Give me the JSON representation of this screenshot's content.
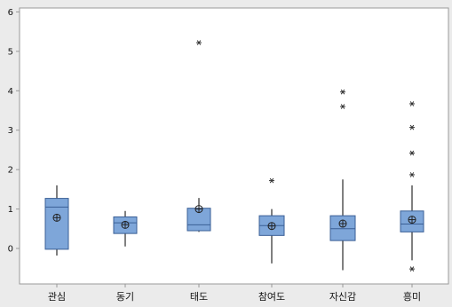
{
  "chart_data": {
    "type": "boxplot",
    "title": "",
    "xlabel": "",
    "ylabel": "",
    "ylim": [
      -0.9,
      6.1
    ],
    "yticks": [
      0,
      1,
      2,
      3,
      4,
      5,
      6
    ],
    "grid": false,
    "legend": "none",
    "colors": {
      "box_fill": "#7ea6d9",
      "box_stroke": "#3a5f96",
      "whisker": "#000000",
      "outlier": "#333333",
      "frame": "#999999",
      "plot_background": "#ffffff",
      "outer_background": "#ebebeb"
    },
    "categories": [
      "관심",
      "동기",
      "태도",
      "참여도",
      "자신감",
      "흥미"
    ],
    "boxes": [
      {
        "category": "관심",
        "whisker_low": -0.18,
        "q1": -0.02,
        "median": 1.05,
        "q3": 1.27,
        "whisker_high": 1.6,
        "mean": 0.78,
        "outliers": []
      },
      {
        "category": "동기",
        "whisker_low": 0.05,
        "q1": 0.38,
        "median": 0.65,
        "q3": 0.8,
        "whisker_high": 0.95,
        "mean": 0.6,
        "outliers": []
      },
      {
        "category": "태도",
        "whisker_low": 0.42,
        "q1": 0.45,
        "median": 0.6,
        "q3": 1.02,
        "whisker_high": 1.28,
        "mean": 1.0,
        "outliers": [
          5.22
        ]
      },
      {
        "category": "참여도",
        "whisker_low": -0.38,
        "q1": 0.33,
        "median": 0.58,
        "q3": 0.83,
        "whisker_high": 1.0,
        "mean": 0.57,
        "outliers": [
          1.72
        ]
      },
      {
        "category": "자신감",
        "whisker_low": -0.55,
        "q1": 0.2,
        "median": 0.5,
        "q3": 0.83,
        "whisker_high": 1.75,
        "mean": 0.63,
        "outliers": [
          3.6,
          3.97
        ]
      },
      {
        "category": "흥미",
        "whisker_low": -0.3,
        "q1": 0.42,
        "median": 0.62,
        "q3": 0.95,
        "whisker_high": 1.6,
        "mean": 0.73,
        "outliers": [
          1.87,
          2.42,
          3.07,
          3.67,
          -0.52
        ]
      }
    ]
  }
}
